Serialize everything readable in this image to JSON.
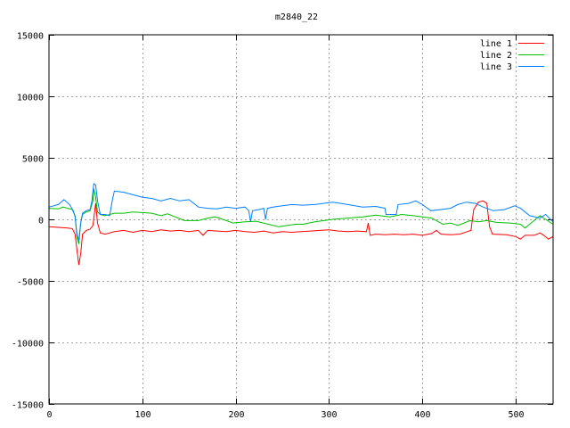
{
  "chart_data": {
    "type": "line",
    "title": "m2840_22",
    "xlabel": "",
    "ylabel": "",
    "xlim": [
      0,
      540
    ],
    "ylim": [
      -15000,
      15000
    ],
    "xticks": [
      0,
      100,
      200,
      300,
      400,
      500
    ],
    "yticks": [
      -15000,
      -10000,
      -5000,
      0,
      5000,
      10000,
      15000
    ],
    "grid": true,
    "legend_position": "top-right",
    "series": [
      {
        "name": "line 1",
        "color": "#ff0000",
        "points": [
          [
            0,
            -600
          ],
          [
            10,
            -650
          ],
          [
            20,
            -700
          ],
          [
            25,
            -750
          ],
          [
            28,
            -1200
          ],
          [
            30,
            -2500
          ],
          [
            32,
            -3700
          ],
          [
            34,
            -2800
          ],
          [
            36,
            -1200
          ],
          [
            40,
            -900
          ],
          [
            44,
            -800
          ],
          [
            47,
            -500
          ],
          [
            50,
            1300
          ],
          [
            52,
            -300
          ],
          [
            55,
            -1100
          ],
          [
            60,
            -1200
          ],
          [
            70,
            -1000
          ],
          [
            80,
            -900
          ],
          [
            90,
            -1050
          ],
          [
            100,
            -900
          ],
          [
            110,
            -1000
          ],
          [
            120,
            -850
          ],
          [
            130,
            -950
          ],
          [
            140,
            -900
          ],
          [
            150,
            -1000
          ],
          [
            160,
            -900
          ],
          [
            165,
            -1300
          ],
          [
            170,
            -900
          ],
          [
            180,
            -950
          ],
          [
            190,
            -1000
          ],
          [
            200,
            -900
          ],
          [
            210,
            -1000
          ],
          [
            220,
            -1050
          ],
          [
            230,
            -950
          ],
          [
            240,
            -1100
          ],
          [
            250,
            -1000
          ],
          [
            260,
            -1050
          ],
          [
            270,
            -1000
          ],
          [
            280,
            -950
          ],
          [
            290,
            -900
          ],
          [
            300,
            -850
          ],
          [
            310,
            -950
          ],
          [
            320,
            -1000
          ],
          [
            330,
            -950
          ],
          [
            340,
            -1000
          ],
          [
            342,
            -300
          ],
          [
            344,
            -1300
          ],
          [
            350,
            -1200
          ],
          [
            360,
            -1250
          ],
          [
            370,
            -1200
          ],
          [
            380,
            -1250
          ],
          [
            390,
            -1200
          ],
          [
            400,
            -1300
          ],
          [
            410,
            -1150
          ],
          [
            415,
            -900
          ],
          [
            420,
            -1200
          ],
          [
            430,
            -1250
          ],
          [
            440,
            -1200
          ],
          [
            448,
            -1000
          ],
          [
            452,
            -900
          ],
          [
            455,
            800
          ],
          [
            460,
            1400
          ],
          [
            465,
            1500
          ],
          [
            469,
            1300
          ],
          [
            472,
            -600
          ],
          [
            475,
            -1200
          ],
          [
            490,
            -1250
          ],
          [
            500,
            -1400
          ],
          [
            505,
            -1600
          ],
          [
            510,
            -1300
          ],
          [
            520,
            -1300
          ],
          [
            526,
            -1100
          ],
          [
            530,
            -1300
          ],
          [
            535,
            -1600
          ],
          [
            540,
            -1400
          ]
        ]
      },
      {
        "name": "line 2",
        "color": "#00c000",
        "points": [
          [
            0,
            900
          ],
          [
            10,
            850
          ],
          [
            15,
            1000
          ],
          [
            20,
            900
          ],
          [
            25,
            800
          ],
          [
            28,
            300
          ],
          [
            30,
            -1500
          ],
          [
            32,
            -2000
          ],
          [
            34,
            -300
          ],
          [
            36,
            400
          ],
          [
            40,
            600
          ],
          [
            44,
            700
          ],
          [
            47,
            1500
          ],
          [
            48,
            2500
          ],
          [
            50,
            1800
          ],
          [
            52,
            600
          ],
          [
            55,
            400
          ],
          [
            60,
            300
          ],
          [
            70,
            500
          ],
          [
            80,
            500
          ],
          [
            90,
            600
          ],
          [
            100,
            550
          ],
          [
            110,
            500
          ],
          [
            120,
            300
          ],
          [
            127,
            450
          ],
          [
            135,
            200
          ],
          [
            145,
            -100
          ],
          [
            160,
            -100
          ],
          [
            170,
            100
          ],
          [
            178,
            200
          ],
          [
            190,
            -100
          ],
          [
            197,
            -300
          ],
          [
            210,
            -200
          ],
          [
            222,
            -150
          ],
          [
            235,
            -400
          ],
          [
            246,
            -600
          ],
          [
            255,
            -500
          ],
          [
            264,
            -400
          ],
          [
            272,
            -400
          ],
          [
            285,
            -200
          ],
          [
            304,
            0
          ],
          [
            320,
            100
          ],
          [
            336,
            200
          ],
          [
            350,
            350
          ],
          [
            365,
            200
          ],
          [
            378,
            400
          ],
          [
            390,
            300
          ],
          [
            400,
            200
          ],
          [
            410,
            100
          ],
          [
            422,
            -400
          ],
          [
            430,
            -300
          ],
          [
            438,
            -500
          ],
          [
            451,
            -100
          ],
          [
            460,
            -200
          ],
          [
            469,
            -100
          ],
          [
            480,
            -250
          ],
          [
            494,
            -300
          ],
          [
            505,
            -400
          ],
          [
            510,
            -700
          ],
          [
            518,
            -200
          ],
          [
            526,
            300
          ],
          [
            532,
            0
          ],
          [
            540,
            -400
          ]
        ]
      },
      {
        "name": "line 3",
        "color": "#0080ff",
        "points": [
          [
            0,
            1000
          ],
          [
            10,
            1200
          ],
          [
            16,
            1600
          ],
          [
            22,
            1200
          ],
          [
            26,
            700
          ],
          [
            28,
            200
          ],
          [
            30,
            -1200
          ],
          [
            32,
            -1700
          ],
          [
            34,
            -300
          ],
          [
            36,
            500
          ],
          [
            40,
            700
          ],
          [
            44,
            800
          ],
          [
            46,
            1500
          ],
          [
            48,
            2900
          ],
          [
            50,
            2800
          ],
          [
            52,
            1500
          ],
          [
            55,
            400
          ],
          [
            60,
            400
          ],
          [
            65,
            300
          ],
          [
            68,
            1600
          ],
          [
            70,
            2300
          ],
          [
            80,
            2200
          ],
          [
            90,
            2000
          ],
          [
            100,
            1800
          ],
          [
            110,
            1700
          ],
          [
            120,
            1500
          ],
          [
            130,
            1700
          ],
          [
            140,
            1500
          ],
          [
            150,
            1600
          ],
          [
            160,
            1000
          ],
          [
            170,
            900
          ],
          [
            180,
            850
          ],
          [
            190,
            1000
          ],
          [
            200,
            900
          ],
          [
            210,
            1000
          ],
          [
            214,
            700
          ],
          [
            216,
            -200
          ],
          [
            218,
            700
          ],
          [
            225,
            800
          ],
          [
            230,
            900
          ],
          [
            232,
            0
          ],
          [
            234,
            900
          ],
          [
            240,
            1000
          ],
          [
            250,
            1100
          ],
          [
            260,
            1200
          ],
          [
            272,
            1150
          ],
          [
            285,
            1200
          ],
          [
            304,
            1400
          ],
          [
            320,
            1200
          ],
          [
            336,
            1000
          ],
          [
            350,
            1050
          ],
          [
            360,
            900
          ],
          [
            361,
            400
          ],
          [
            372,
            400
          ],
          [
            374,
            1200
          ],
          [
            385,
            1300
          ],
          [
            393,
            1500
          ],
          [
            400,
            1200
          ],
          [
            409,
            700
          ],
          [
            420,
            800
          ],
          [
            430,
            900
          ],
          [
            438,
            1200
          ],
          [
            447,
            1400
          ],
          [
            457,
            1300
          ],
          [
            465,
            1000
          ],
          [
            476,
            700
          ],
          [
            488,
            800
          ],
          [
            499,
            1100
          ],
          [
            505,
            900
          ],
          [
            515,
            300
          ],
          [
            526,
            100
          ],
          [
            532,
            400
          ],
          [
            540,
            -200
          ]
        ]
      }
    ]
  }
}
